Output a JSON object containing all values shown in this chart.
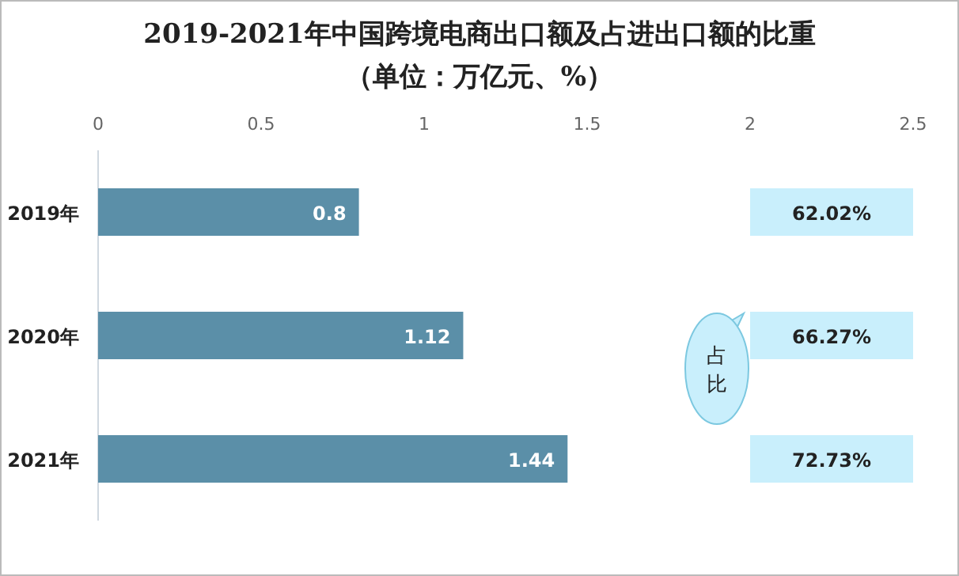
{
  "chart_data": {
    "type": "bar",
    "orientation": "horizontal",
    "title": "2019-2021年中国跨境电商出口额及占进出口额的比重",
    "subtitle": "（单位：万亿元、%）",
    "categories": [
      "2019年",
      "2020年",
      "2021年"
    ],
    "values": [
      0.8,
      1.12,
      1.44
    ],
    "color": "#5b8fa8",
    "xlim": [
      0,
      2.5
    ],
    "xticks": [
      0,
      0.5,
      1,
      1.5,
      2,
      2.5
    ],
    "grid": false,
    "data_labels": true,
    "annotations": [
      "62.02%",
      "66.27%",
      "72.73%",
      "占比"
    ]
  }
}
